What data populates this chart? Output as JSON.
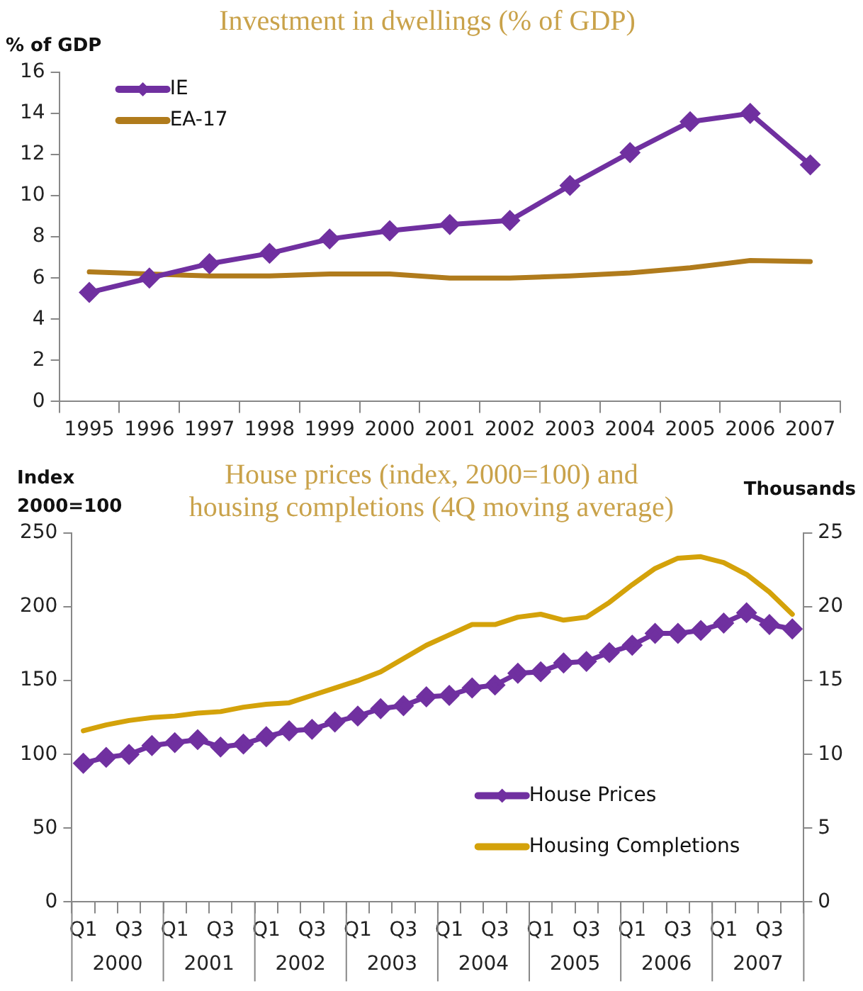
{
  "chart_data": [
    {
      "type": "line",
      "title": "Investment in dwellings (% of GDP)",
      "ylabel": "% of GDP",
      "categories": [
        "1995",
        "1996",
        "1997",
        "1998",
        "1999",
        "2000",
        "2001",
        "2002",
        "2003",
        "2004",
        "2005",
        "2006",
        "2007"
      ],
      "series": [
        {
          "name": "IE",
          "color": "#7030a0",
          "marker": "diamond",
          "values": [
            5.3,
            6.0,
            6.7,
            7.2,
            7.9,
            8.3,
            8.6,
            8.8,
            10.5,
            12.1,
            13.6,
            14.0,
            11.5
          ]
        },
        {
          "name": "EA-17",
          "color": "#b07b1c",
          "marker": "none",
          "values": [
            6.3,
            6.2,
            6.1,
            6.1,
            6.2,
            6.2,
            6.0,
            6.0,
            6.1,
            6.25,
            6.5,
            6.85,
            6.8
          ]
        }
      ],
      "ylim": [
        0,
        16
      ],
      "yticks": [
        0,
        2,
        4,
        6,
        8,
        10,
        12,
        14,
        16
      ],
      "grid": false,
      "legend": "top left",
      "line_style": "solid"
    },
    {
      "type": "line",
      "title": "House prices (index, 2000=100) and housing completions (4Q moving average)",
      "ylabel": "Index 2000=100",
      "y2label": "Thousands",
      "categories": [
        "Q1",
        null,
        "Q3",
        null,
        "Q1",
        null,
        "Q3",
        null,
        "Q1",
        null,
        "Q3",
        null,
        "Q1",
        null,
        "Q3",
        null,
        "Q1",
        null,
        "Q3",
        null,
        "Q1",
        null,
        "Q3",
        null,
        "Q1",
        null,
        "Q3",
        null,
        "Q1",
        null,
        "Q3",
        null
      ],
      "series": [
        {
          "name": "House Prices",
          "color": "#7030a0",
          "marker": "diamond",
          "values": [
            94,
            98,
            100,
            106,
            108,
            110,
            105,
            107,
            112,
            116,
            117,
            122,
            126,
            131,
            133,
            139,
            140,
            145,
            147,
            155,
            156,
            162,
            163,
            169,
            174,
            182,
            182,
            184,
            189,
            196,
            188,
            185
          ]
        },
        {
          "name": "Housing Completions",
          "color": "#d4a20a",
          "marker": "none",
          "axis": "y2",
          "values": [
            11.6,
            12.0,
            12.3,
            12.5,
            12.6,
            12.8,
            12.9,
            13.2,
            13.4,
            13.5,
            14.0,
            14.5,
            15.0,
            15.6,
            16.5,
            17.4,
            18.1,
            18.8,
            18.8,
            19.3,
            19.5,
            19.1,
            19.3,
            20.3,
            21.5,
            22.6,
            23.3,
            23.4,
            23.0,
            22.2,
            21.0,
            19.5
          ]
        }
      ],
      "ylim": [
        0,
        250
      ],
      "yticks": [
        0,
        50,
        100,
        150,
        200,
        250
      ],
      "y2lim": [
        0,
        25
      ],
      "y2ticks": [
        0,
        5,
        10,
        15,
        20,
        25
      ],
      "annotations": [
        "2000",
        "2001",
        "2002",
        "2003",
        "2004",
        "2005",
        "2006",
        "2007"
      ],
      "grid": false,
      "legend": "bottom right",
      "line_style": "solid"
    }
  ]
}
